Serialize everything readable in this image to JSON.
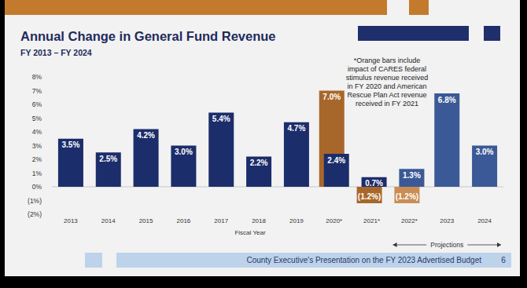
{
  "chart_data": {
    "type": "bar",
    "title": "Annual Change in General Fund Revenue",
    "subtitle": "FY 2013 – FY 2024",
    "x_label": "Fiscal Year",
    "annotation": [
      "*Orange bars include",
      "impact of CARES federal",
      "stimulus revenue received",
      "in FY 2020 and American",
      "Rescue Plan Act revenue",
      "received in FY 2021"
    ],
    "bracket": {
      "label": "Projections",
      "from": "2022*",
      "to": "2024"
    },
    "footer": "County Executive's Presentation on the FY 2023 Advertised Budget",
    "page_number": 6,
    "categories": [
      "2013",
      "2014",
      "2015",
      "2016",
      "2017",
      "2018",
      "2019",
      "2020*",
      "2021*",
      "2022*",
      "2023",
      "2024"
    ],
    "series": [
      {
        "colors": [
          null,
          null,
          null,
          null,
          null,
          null,
          null,
          "#a8672a",
          "#a8672a",
          "#c98d55",
          null,
          null
        ],
        "values": [
          null,
          null,
          null,
          null,
          null,
          null,
          null,
          7.0,
          -1.2,
          -1.2,
          null,
          null
        ],
        "value_labels": [
          null,
          null,
          null,
          null,
          null,
          null,
          null,
          "7.0%",
          "(1.2%)",
          "(1.2%)",
          null,
          null
        ]
      },
      {
        "colors": [
          "#1c2d6b",
          "#1c2d6b",
          "#1c2d6b",
          "#1c2d6b",
          "#1c2d6b",
          "#1c2d6b",
          "#1c2d6b",
          "#1c2d6b",
          "#1c2d6b",
          "#3b5996",
          "#3b5996",
          "#3b5996"
        ],
        "values": [
          3.5,
          2.5,
          4.2,
          3.0,
          5.4,
          2.2,
          4.7,
          2.4,
          0.7,
          1.3,
          6.8,
          3.0
        ],
        "value_labels": [
          "3.5%",
          "2.5%",
          "4.2%",
          "3.0%",
          "5.4%",
          "2.2%",
          "4.7%",
          "2.4%",
          "0.7%",
          "1.3%",
          "6.8%",
          "3.0%"
        ]
      }
    ],
    "ylim": [
      -2,
      8
    ],
    "yticks": [
      {
        "value": -2,
        "label": "(2%)"
      },
      {
        "value": -1,
        "label": "(1%)"
      },
      {
        "value": 0,
        "label": "0%"
      },
      {
        "value": 1,
        "label": "1%"
      },
      {
        "value": 2,
        "label": "2%"
      },
      {
        "value": 3,
        "label": "3%"
      },
      {
        "value": 4,
        "label": "4%"
      },
      {
        "value": 5,
        "label": "5%"
      },
      {
        "value": 6,
        "label": "6%"
      },
      {
        "value": 7,
        "label": "7%"
      },
      {
        "value": 8,
        "label": "8%"
      }
    ],
    "grid": false,
    "data_labels": true
  }
}
